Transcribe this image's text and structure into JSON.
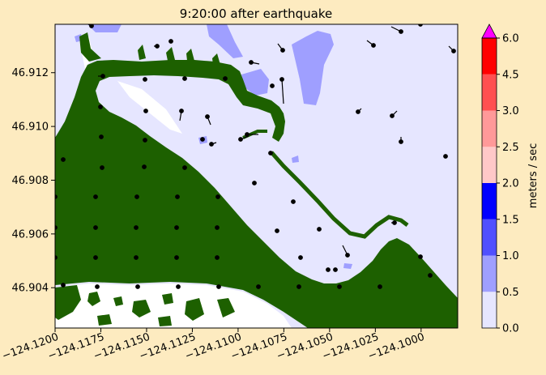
{
  "chart_data": {
    "type": "heatmap",
    "title": "9:20:00 after earthquake",
    "xlim": [
      -124.12,
      -124.098
    ],
    "ylim": [
      46.9025,
      46.9138
    ],
    "x_ticks": [
      "−124.1200",
      "−124.1175",
      "−124.1150",
      "−124.1125",
      "−124.1100",
      "−124.1075",
      "−124.1050",
      "−124.1025",
      "−124.1000"
    ],
    "x_tick_values": [
      -124.12,
      -124.1175,
      -124.115,
      -124.1125,
      -124.11,
      -124.1075,
      -124.105,
      -124.1025,
      -124.1
    ],
    "y_ticks": [
      "46.904",
      "46.906",
      "46.908",
      "46.910",
      "46.912"
    ],
    "y_tick_values": [
      46.904,
      46.906,
      46.908,
      46.91,
      46.912
    ],
    "colorbar": {
      "label": "meters / sec",
      "ticks": [
        "0.0",
        "0.5",
        "1.0",
        "1.5",
        "2.0",
        "2.5",
        "3.0",
        "4.5",
        "6.0"
      ],
      "levels": [
        0.0,
        0.5,
        1.0,
        1.5,
        2.0,
        2.5,
        3.0,
        4.5,
        6.0
      ],
      "colors": [
        "#e6e6ff",
        "#9f9fff",
        "#5050ff",
        "#0000ff",
        "#ffc8c8",
        "#ff9999",
        "#ff5050",
        "#ff0000"
      ],
      "extend_color": "#ff00ff"
    },
    "colors": {
      "land": "#1d6000",
      "water_slow": "#e6e6ff",
      "water_medium": "#9f9fff",
      "dry": "#ffffff",
      "frame_bg": "#fdebc0"
    }
  }
}
